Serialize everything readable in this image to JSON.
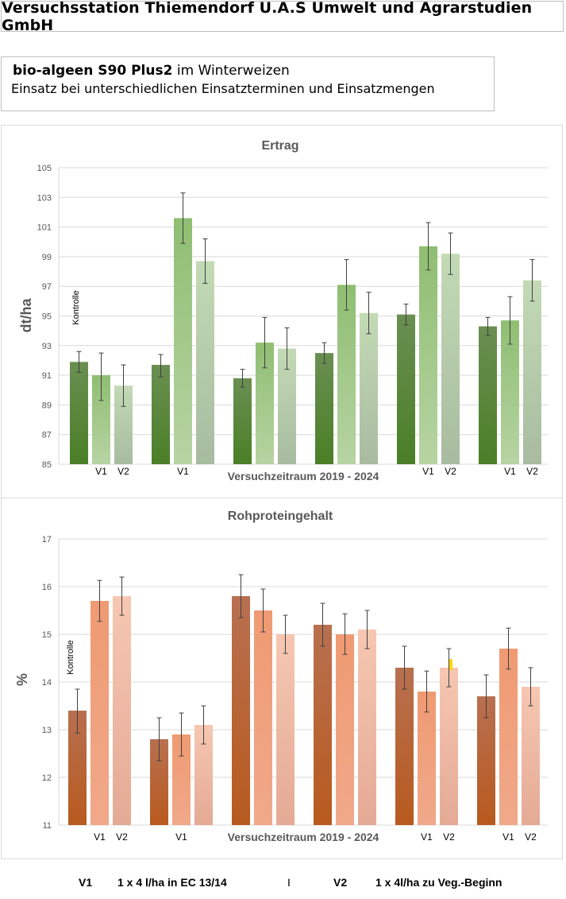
{
  "header": {
    "title": "Versuchsstation Thiemendorf U.A.S Umwelt und Agrarstudien GmbH"
  },
  "product": {
    "name": "bio-algeen S90 Plus2",
    "crop": " im Winterweizen",
    "description": "Einsatz bei unterschiedlichen Einsatzterminen und Einsatzmengen"
  },
  "legend_footer": {
    "v1_label": "V1",
    "v1_text": "1 x 4 l/ha in EC 13/14",
    "separator": "I",
    "v2_label": "V2",
    "v2_text": "1 x 4l/ha zu Veg.-Beginn"
  },
  "chart_data": [
    {
      "type": "bar",
      "title": "Ertrag",
      "ylabel": "dt/ha",
      "xlabel": "Versuchzeitraum 2019 - 2024",
      "ylim": [
        85,
        105
      ],
      "yticks": [
        85,
        87,
        89,
        91,
        93,
        95,
        97,
        99,
        101,
        103,
        105
      ],
      "grid": true,
      "groups": 6,
      "series_per_group": 3,
      "values": [
        [
          91.9,
          91.0,
          90.3
        ],
        [
          91.7,
          101.6,
          98.7
        ],
        [
          90.8,
          93.2,
          92.8
        ],
        [
          92.5,
          97.1,
          95.2
        ],
        [
          95.1,
          99.7,
          99.2
        ],
        [
          94.3,
          94.7,
          97.4
        ]
      ],
      "errors": [
        [
          [
            91.2,
            92.6
          ],
          [
            89.3,
            92.5
          ],
          [
            88.9,
            91.7
          ]
        ],
        [
          [
            90.9,
            92.4
          ],
          [
            99.9,
            103.3
          ],
          [
            97.2,
            100.2
          ]
        ],
        [
          [
            90.2,
            91.4
          ],
          [
            91.5,
            94.9
          ],
          [
            91.4,
            94.2
          ]
        ],
        [
          [
            91.8,
            93.2
          ],
          [
            95.4,
            98.8
          ],
          [
            93.8,
            96.6
          ]
        ],
        [
          [
            94.4,
            95.8
          ],
          [
            98.1,
            101.3
          ],
          [
            97.8,
            100.6
          ]
        ],
        [
          [
            93.7,
            94.9
          ],
          [
            93.1,
            96.3
          ],
          [
            96.0,
            98.8
          ]
        ]
      ],
      "annotations": [
        {
          "text": "Kontrolle",
          "group": 0
        }
      ],
      "category_labels": [
        [
          "V1",
          "V2"
        ],
        [
          "V1"
        ],
        [],
        [],
        [
          "V1",
          "V2"
        ],
        [
          "V1",
          "V2"
        ]
      ],
      "colors": {
        "dark_top": "#6a8f52",
        "dark_bottom": "#4a7f26",
        "mid_top": "#8fbe72",
        "mid_bottom": "#b7d4a3",
        "light_top": "#c3dab5",
        "light_bottom": "#a8bba0"
      }
    },
    {
      "type": "bar",
      "title": "Rohproteingehalt",
      "ylabel": "%",
      "xlabel": "Versuchzeitraum 2019 - 2024",
      "ylim": [
        11,
        17
      ],
      "yticks": [
        11,
        12,
        13,
        14,
        15,
        16,
        17
      ],
      "grid": true,
      "groups": 6,
      "series_per_group": 3,
      "values": [
        [
          13.4,
          15.7,
          15.8
        ],
        [
          12.8,
          12.9,
          13.1
        ],
        [
          15.8,
          15.5,
          15.0
        ],
        [
          15.2,
          15.0,
          15.1
        ],
        [
          14.3,
          13.8,
          14.3
        ],
        [
          13.7,
          14.7,
          13.9
        ]
      ],
      "errors": [
        [
          [
            12.93,
            13.85
          ],
          [
            15.27,
            16.13
          ],
          [
            15.4,
            16.2
          ]
        ],
        [
          [
            12.35,
            13.25
          ],
          [
            12.45,
            13.35
          ],
          [
            12.7,
            13.5
          ]
        ],
        [
          [
            15.35,
            16.25
          ],
          [
            15.05,
            15.95
          ],
          [
            14.6,
            15.4
          ]
        ],
        [
          [
            14.75,
            15.65
          ],
          [
            14.58,
            15.43
          ],
          [
            14.7,
            15.5
          ]
        ],
        [
          [
            13.85,
            14.75
          ],
          [
            13.37,
            14.23
          ],
          [
            13.9,
            14.7
          ]
        ],
        [
          [
            13.25,
            14.15
          ],
          [
            14.27,
            15.13
          ],
          [
            13.5,
            14.3
          ]
        ]
      ],
      "annotations": [
        {
          "text": "Kontrolle",
          "group": 0
        }
      ],
      "category_labels": [
        [
          "V1",
          "V2"
        ],
        [
          "V1"
        ],
        [],
        [],
        [
          "V1",
          "V2"
        ],
        [
          "V1",
          "V2"
        ]
      ],
      "colors": {
        "dark_top": "#b87050",
        "dark_bottom": "#b85a1e",
        "mid_top": "#ef9a72",
        "mid_bottom": "#f0a98a",
        "light_top": "#f6c7b2",
        "light_bottom": "#e4aa95",
        "highlight": "#ffd700"
      }
    }
  ]
}
